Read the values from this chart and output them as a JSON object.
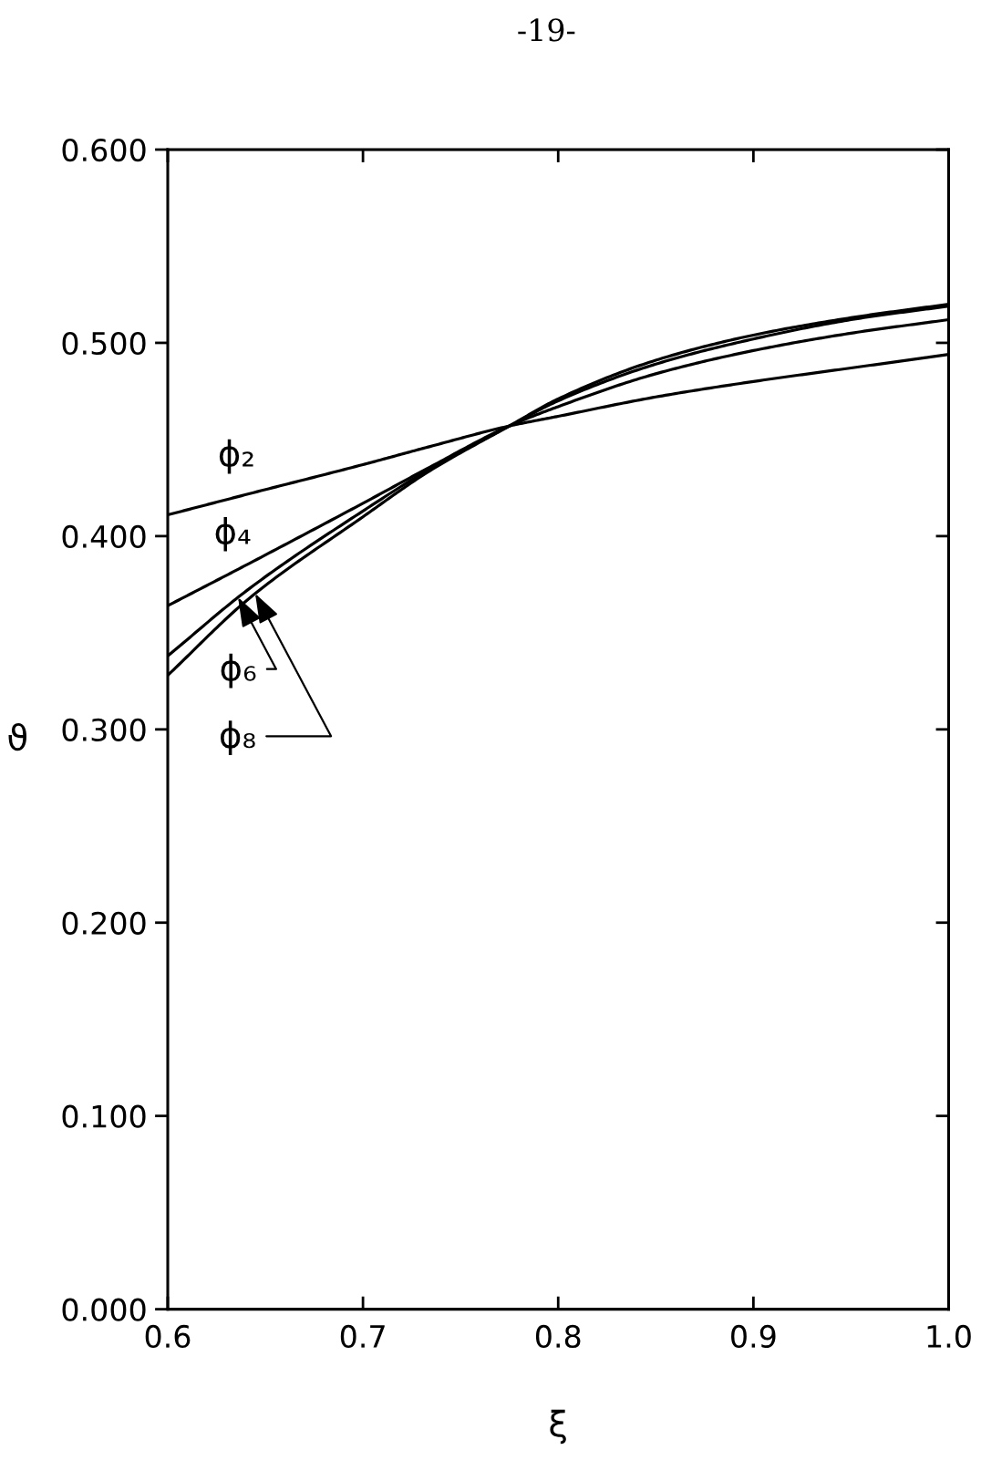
{
  "chart_data": {
    "type": "line",
    "xlabel": "ξ",
    "ylabel": "ϑ",
    "annotations": [
      "-19-"
    ],
    "x": [
      0.6,
      0.642,
      0.7,
      0.733,
      0.775,
      0.8,
      0.85,
      0.9,
      0.95,
      1.0
    ],
    "series": [
      {
        "name": "ϕ₂",
        "color": "#000000",
        "values": [
          0.411,
          0.422,
          0.437,
          0.446,
          0.457,
          0.462,
          0.472,
          0.48,
          0.487,
          0.494
        ]
      },
      {
        "name": "ϕ₄",
        "color": "#000000",
        "values": [
          0.364,
          0.386,
          0.417,
          0.435,
          0.457,
          0.467,
          0.484,
          0.496,
          0.505,
          0.512
        ]
      },
      {
        "name": "ϕ₆",
        "color": "#000000",
        "values": [
          0.338,
          0.373,
          0.413,
          0.434,
          0.457,
          0.47,
          0.489,
          0.502,
          0.512,
          0.519
        ]
      },
      {
        "name": "ϕ₈",
        "color": "#000000",
        "values": [
          0.328,
          0.368,
          0.41,
          0.433,
          0.457,
          0.471,
          0.491,
          0.504,
          0.513,
          0.52
        ]
      }
    ],
    "xlim": [
      0.6,
      1.0
    ],
    "ylim": [
      0.0,
      0.6
    ],
    "xticks": [
      0.6,
      0.7,
      0.8,
      0.9,
      {
        "value": 1.0,
        "label": "1.0"
      }
    ],
    "yticks": [
      {
        "value": 0.0,
        "label": "0.000"
      },
      {
        "value": 0.1,
        "label": "0.100"
      },
      {
        "value": 0.2,
        "label": "0.200"
      },
      {
        "value": 0.3,
        "label": "0.300"
      },
      {
        "value": 0.4,
        "label": "0.400"
      },
      {
        "value": 0.5,
        "label": "0.500"
      },
      {
        "value": 0.6,
        "label": "0.600"
      }
    ]
  }
}
